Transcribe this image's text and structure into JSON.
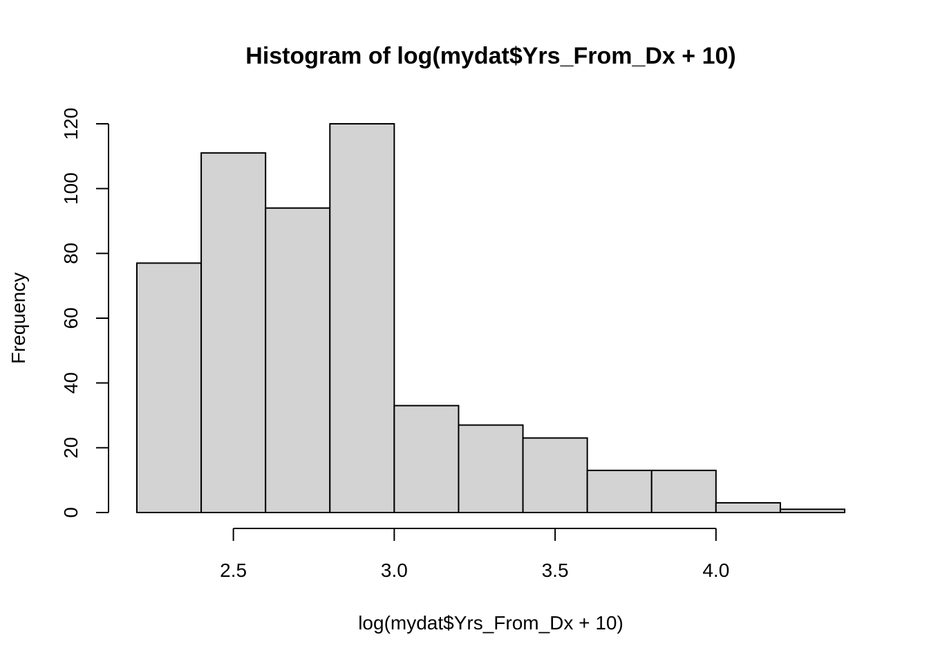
{
  "chart_data": {
    "type": "bar",
    "title": "Histogram of log(mydat$Yrs_From_Dx + 10)",
    "xlabel": "log(mydat$Yrs_From_Dx + 10)",
    "ylabel": "Frequency",
    "bin_edges": [
      2.2,
      2.4,
      2.6,
      2.8,
      3.0,
      3.2,
      3.4,
      3.6,
      3.8,
      4.0,
      4.2,
      4.4
    ],
    "values": [
      77,
      111,
      94,
      120,
      33,
      27,
      23,
      13,
      13,
      3,
      1
    ],
    "xlim": [
      2.2,
      4.4
    ],
    "ylim": [
      0,
      120
    ],
    "x_ticks": [
      "2.5",
      "3.0",
      "3.5",
      "4.0"
    ],
    "y_ticks": [
      "0",
      "20",
      "40",
      "60",
      "80",
      "100",
      "120"
    ],
    "bar_color": "#d3d3d3",
    "grid": false,
    "legend": "none"
  }
}
